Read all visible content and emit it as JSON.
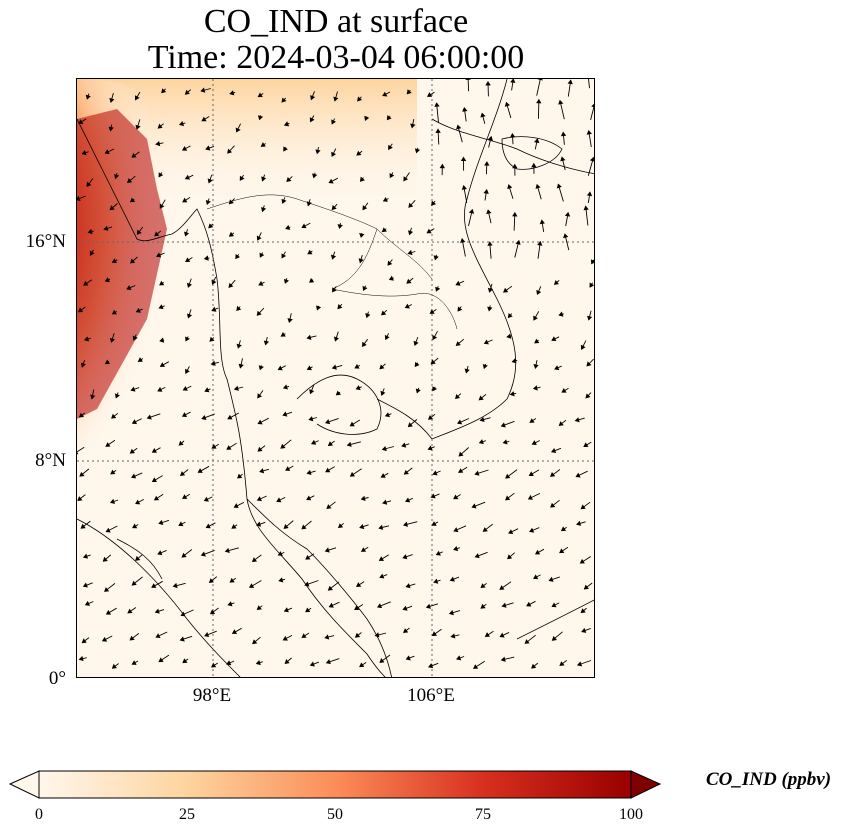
{
  "title": {
    "line1": "CO_IND at surface",
    "line2": "Time: 2024-03-04 06:00:00"
  },
  "map": {
    "variable": "CO_IND",
    "level": "surface",
    "lat_labels": [
      "16°N",
      "8°N",
      "0°"
    ],
    "lon_labels": [
      "98°E",
      "106°E"
    ],
    "gridlines": "dotted",
    "colormap": "OrRd",
    "colors": {
      "low": "#fff7ec",
      "mid": "#fc8d59",
      "high": "#b30000",
      "extend_high": "#7f0000",
      "coastline": "#000000"
    },
    "vectors": "wind arrows",
    "plume_region": "west, over Bay of Bengal / Myanmar coast"
  },
  "colorbar": {
    "ticks": [
      "0",
      "25",
      "50",
      "75",
      "100"
    ],
    "label": "CO_IND (ppbv)",
    "extend": "both"
  }
}
